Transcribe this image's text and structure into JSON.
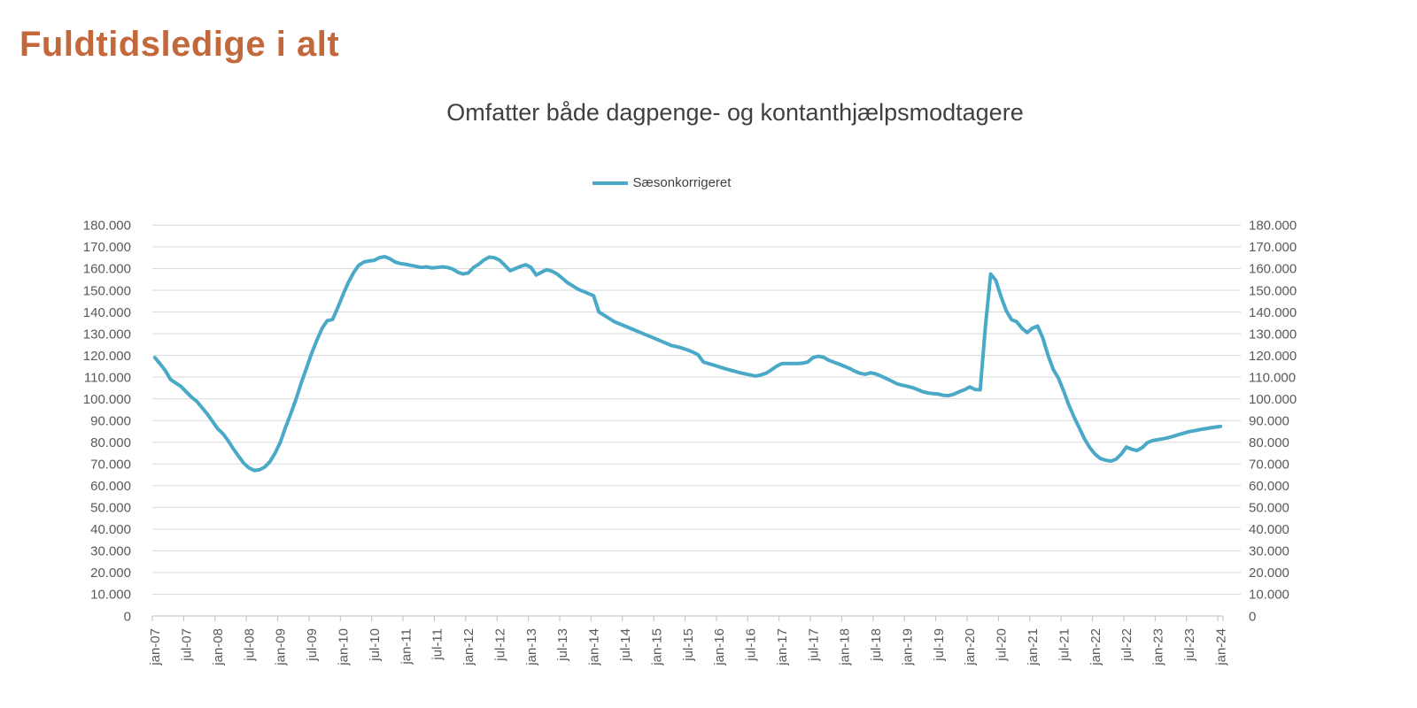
{
  "page": {
    "title": "Fuldtidsledige i alt"
  },
  "chart": {
    "title": "Omfatter både dagpenge- og kontanthjælpsmodtagere",
    "legend": {
      "label": "Sæsonkorrigeret",
      "color": "#4AA9C6"
    }
  },
  "colors": {
    "page_title": "#C2683B",
    "line": "#4AA9C6",
    "grid": "#D9D9D9",
    "axis": "#BFBFBF",
    "tick_text": "#595959",
    "chart_title_text": "#3F3F3F"
  },
  "chart_data": {
    "type": "line",
    "title": "Omfatter både dagpenge- og kontanthjælpsmodtagere",
    "x_unit": "month",
    "x_start": "jan-07",
    "x_end": "jan-24",
    "x_tick_interval_months": 6,
    "x_tick_labels": [
      "jan-07",
      "jul-07",
      "jan-08",
      "jul-08",
      "jan-09",
      "jul-09",
      "jan-10",
      "jul-10",
      "jan-11",
      "jul-11",
      "jan-12",
      "jul-12",
      "jan-13",
      "jul-13",
      "jan-14",
      "jul-14",
      "jan-15",
      "jul-15",
      "jan-16",
      "jul-16",
      "jan-17",
      "jul-17",
      "jan-18",
      "jul-18",
      "jan-19",
      "jul-19",
      "jan-20",
      "jul-20",
      "jan-21",
      "jul-21",
      "jan-22",
      "jul-22",
      "jan-23",
      "jul-23",
      "jan-24"
    ],
    "ylim": [
      0,
      180000
    ],
    "ytick_step": 10000,
    "grid": "horizontal",
    "legend_position": "top-center",
    "dual_y_axis": true,
    "series": [
      {
        "name": "Sæsonkorrigeret",
        "color": "#4AA9C6",
        "values": [
          119000,
          116100,
          113000,
          108900,
          107300,
          105700,
          103200,
          100800,
          98900,
          96000,
          93100,
          89700,
          86300,
          84000,
          80800,
          77000,
          73600,
          70400,
          68200,
          67000,
          67300,
          68500,
          71000,
          75000,
          80000,
          86900,
          93100,
          99800,
          107300,
          114100,
          121000,
          127000,
          132500,
          136000,
          136500,
          142000,
          148000,
          153500,
          158000,
          161500,
          163000,
          163500,
          163800,
          165000,
          165500,
          164500,
          163000,
          162300,
          162000,
          161500,
          161000,
          160500,
          160800,
          160300,
          160500,
          160800,
          160500,
          159800,
          158300,
          157500,
          158000,
          160500,
          162000,
          164000,
          165300,
          165000,
          163800,
          161500,
          159000,
          160000,
          161000,
          161800,
          160500,
          157000,
          158300,
          159500,
          158800,
          157500,
          155500,
          153500,
          152000,
          150500,
          149500,
          148500,
          147500,
          140000,
          138500,
          137000,
          135500,
          134500,
          133500,
          132500,
          131500,
          130500,
          129500,
          128500,
          127500,
          126500,
          125500,
          124500,
          124000,
          123300,
          122500,
          121500,
          120300,
          117000,
          116200,
          115500,
          114800,
          114000,
          113300,
          112700,
          112000,
          111500,
          111000,
          110500,
          111000,
          111800,
          113300,
          115000,
          116200,
          116300,
          116300,
          116300,
          116400,
          117000,
          119000,
          119600,
          119200,
          117800,
          116900,
          116000,
          115000,
          114000,
          112700,
          111800,
          111300,
          112000,
          111500,
          110500,
          109400,
          108200,
          107000,
          106300,
          105800,
          105200,
          104300,
          103300,
          102700,
          102400,
          102200,
          101600,
          101500,
          102200,
          103300,
          104200,
          105500,
          104300,
          104200,
          133500,
          157500,
          154500,
          147000,
          140500,
          136500,
          135500,
          132500,
          130500,
          132500,
          133500,
          128000,
          120000,
          113500,
          109500,
          103500,
          97000,
          91500,
          86500,
          81500,
          77500,
          74500,
          72500,
          71800,
          71300,
          72200,
          74500,
          77800,
          76800,
          76200,
          77500,
          79800,
          80800,
          81200,
          81600,
          82100,
          82800,
          83500,
          84200,
          84900,
          85300,
          85800,
          86200,
          86600,
          87000,
          87300
        ]
      }
    ]
  }
}
